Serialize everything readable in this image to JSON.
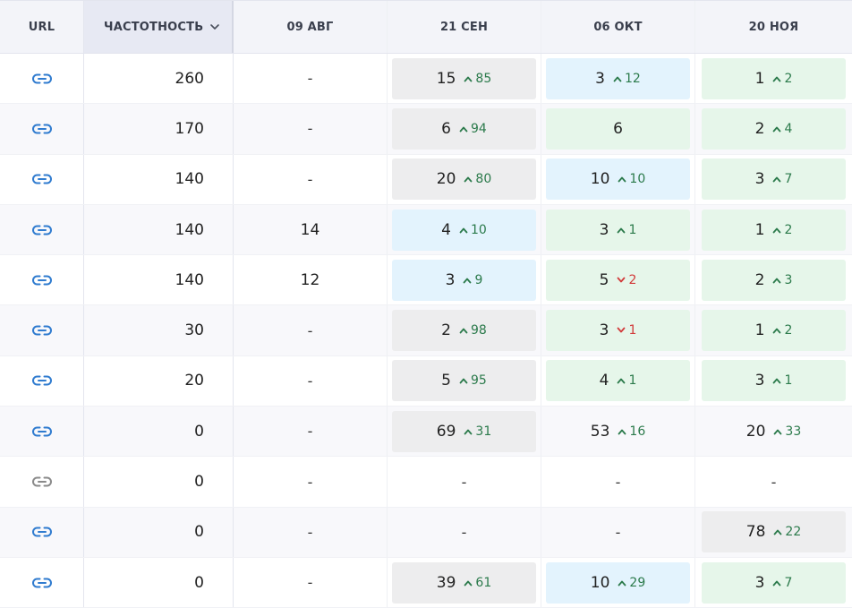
{
  "header": {
    "url": "URL",
    "frequency": "ЧАСТОТНОСТЬ",
    "dates": [
      "09 АВГ",
      "21 СЕН",
      "06 ОКТ",
      "20 НОЯ"
    ]
  },
  "colors": {
    "link_active": "#2f7bcf",
    "link_inactive": "#8a8a8a",
    "delta_up": "#2b7a4b",
    "delta_down": "#d23b3b",
    "cell_gray": "#ededee",
    "cell_blue": "#e3f3fd",
    "cell_green": "#e6f6ea"
  },
  "rows": [
    {
      "link": "active",
      "freq": "260",
      "cells": [
        {
          "v": "-"
        },
        {
          "v": "15",
          "d": "85",
          "dir": "up",
          "bg": "gray"
        },
        {
          "v": "3",
          "d": "12",
          "dir": "up",
          "bg": "blue"
        },
        {
          "v": "1",
          "d": "2",
          "dir": "up",
          "bg": "green"
        }
      ]
    },
    {
      "link": "active",
      "freq": "170",
      "cells": [
        {
          "v": "-"
        },
        {
          "v": "6",
          "d": "94",
          "dir": "up",
          "bg": "gray"
        },
        {
          "v": "6",
          "bg": "green"
        },
        {
          "v": "2",
          "d": "4",
          "dir": "up",
          "bg": "green"
        }
      ]
    },
    {
      "link": "active",
      "freq": "140",
      "cells": [
        {
          "v": "-"
        },
        {
          "v": "20",
          "d": "80",
          "dir": "up",
          "bg": "gray"
        },
        {
          "v": "10",
          "d": "10",
          "dir": "up",
          "bg": "blue"
        },
        {
          "v": "3",
          "d": "7",
          "dir": "up",
          "bg": "green"
        }
      ]
    },
    {
      "link": "active",
      "freq": "140",
      "cells": [
        {
          "v": "14"
        },
        {
          "v": "4",
          "d": "10",
          "dir": "up",
          "bg": "blue"
        },
        {
          "v": "3",
          "d": "1",
          "dir": "up",
          "bg": "green"
        },
        {
          "v": "1",
          "d": "2",
          "dir": "up",
          "bg": "green"
        }
      ]
    },
    {
      "link": "active",
      "freq": "140",
      "cells": [
        {
          "v": "12"
        },
        {
          "v": "3",
          "d": "9",
          "dir": "up",
          "bg": "blue"
        },
        {
          "v": "5",
          "d": "2",
          "dir": "down",
          "bg": "green"
        },
        {
          "v": "2",
          "d": "3",
          "dir": "up",
          "bg": "green"
        }
      ]
    },
    {
      "link": "active",
      "freq": "30",
      "cells": [
        {
          "v": "-"
        },
        {
          "v": "2",
          "d": "98",
          "dir": "up",
          "bg": "gray"
        },
        {
          "v": "3",
          "d": "1",
          "dir": "down",
          "bg": "green"
        },
        {
          "v": "1",
          "d": "2",
          "dir": "up",
          "bg": "green"
        }
      ]
    },
    {
      "link": "active",
      "freq": "20",
      "cells": [
        {
          "v": "-"
        },
        {
          "v": "5",
          "d": "95",
          "dir": "up",
          "bg": "gray"
        },
        {
          "v": "4",
          "d": "1",
          "dir": "up",
          "bg": "green"
        },
        {
          "v": "3",
          "d": "1",
          "dir": "up",
          "bg": "green"
        }
      ]
    },
    {
      "link": "active",
      "freq": "0",
      "cells": [
        {
          "v": "-"
        },
        {
          "v": "69",
          "d": "31",
          "dir": "up",
          "bg": "gray"
        },
        {
          "v": "53",
          "d": "16",
          "dir": "up"
        },
        {
          "v": "20",
          "d": "33",
          "dir": "up"
        }
      ]
    },
    {
      "link": "inactive",
      "freq": "0",
      "cells": [
        {
          "v": "-"
        },
        {
          "v": "-"
        },
        {
          "v": "-"
        },
        {
          "v": "-"
        }
      ]
    },
    {
      "link": "active",
      "freq": "0",
      "cells": [
        {
          "v": "-"
        },
        {
          "v": "-"
        },
        {
          "v": "-"
        },
        {
          "v": "78",
          "d": "22",
          "dir": "up",
          "bg": "gray"
        }
      ]
    },
    {
      "link": "active",
      "freq": "0",
      "cells": [
        {
          "v": "-"
        },
        {
          "v": "39",
          "d": "61",
          "dir": "up",
          "bg": "gray"
        },
        {
          "v": "10",
          "d": "29",
          "dir": "up",
          "bg": "blue"
        },
        {
          "v": "3",
          "d": "7",
          "dir": "up",
          "bg": "green"
        }
      ]
    }
  ]
}
